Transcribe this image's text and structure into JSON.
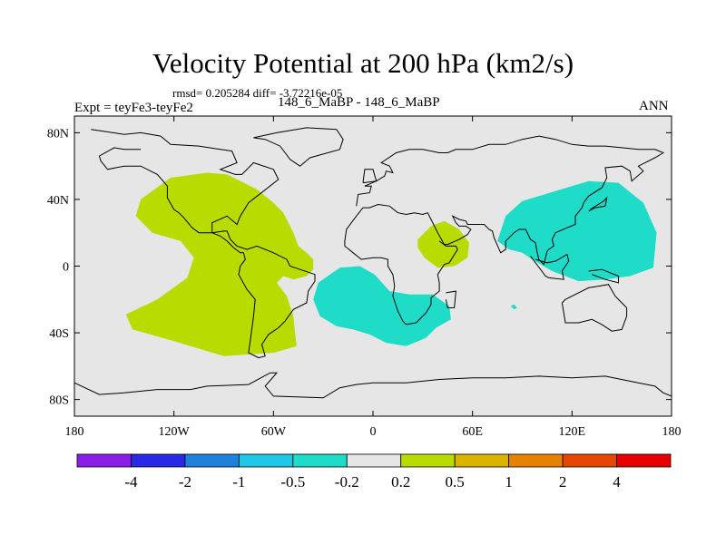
{
  "chart_data": {
    "type": "heatmap",
    "title": "Velocity Potential at 200 hPa (km2/s)",
    "stats": "rmsd= 0.205284 diff= -3.72216e-05",
    "experiment": "Expt = teyFe3-teyFe2",
    "subtitle": "148_6_MaBP - 148_6_MaBP",
    "season": "ANN",
    "x_range": [
      -180,
      180
    ],
    "y_range": [
      -90,
      90
    ],
    "x_ticks": [
      {
        "value": -180,
        "label": "180"
      },
      {
        "value": -120,
        "label": "120W"
      },
      {
        "value": -60,
        "label": "60W"
      },
      {
        "value": 0,
        "label": "0"
      },
      {
        "value": 60,
        "label": "60E"
      },
      {
        "value": 120,
        "label": "120E"
      },
      {
        "value": 180,
        "label": "180"
      }
    ],
    "y_ticks": [
      {
        "value": 80,
        "label": "80N"
      },
      {
        "value": 40,
        "label": "40N"
      },
      {
        "value": 0,
        "label": "0"
      },
      {
        "value": -40,
        "label": "40S"
      },
      {
        "value": -80,
        "label": "80S"
      }
    ],
    "colorbar": {
      "colors": [
        "#8a1ee6",
        "#2828e6",
        "#1e82dc",
        "#1ec8e6",
        "#1edcc8",
        "#e6e6e6",
        "#b8dc00",
        "#dcb400",
        "#e68200",
        "#e64600",
        "#e60000"
      ],
      "labels": [
        "-4",
        "-2",
        "-1",
        "-0.5",
        "-0.2",
        "0.2",
        "0.5",
        "1",
        "2",
        "4"
      ]
    },
    "regions": [
      {
        "name": "positive-anomaly-americas",
        "value_bin": "0.2 to 0.5",
        "color": "#b8dc00",
        "outline": [
          [
            -140,
            40
          ],
          [
            -122,
            53
          ],
          [
            -100,
            56
          ],
          [
            -88,
            55
          ],
          [
            -70,
            46
          ],
          [
            -60,
            38
          ],
          [
            -54,
            32
          ],
          [
            -48,
            20
          ],
          [
            -45,
            12
          ],
          [
            -40,
            8
          ],
          [
            -36,
            4
          ],
          [
            -36,
            -2
          ],
          [
            -40,
            -6
          ],
          [
            -48,
            -8
          ],
          [
            -54,
            -6
          ],
          [
            -58,
            -10
          ],
          [
            -52,
            -18
          ],
          [
            -48,
            -30
          ],
          [
            -47,
            -40
          ],
          [
            -46,
            -48
          ],
          [
            -60,
            -52
          ],
          [
            -90,
            -54
          ],
          [
            -120,
            -45
          ],
          [
            -145,
            -38
          ],
          [
            -149,
            -29
          ],
          [
            -130,
            -20
          ],
          [
            -112,
            -7
          ],
          [
            -108,
            5
          ],
          [
            -116,
            15
          ],
          [
            -133,
            20
          ],
          [
            -143,
            30
          ]
        ]
      },
      {
        "name": "positive-anomaly-arabia",
        "value_bin": "0.2 to 0.5",
        "color": "#b8dc00",
        "outline": [
          [
            27,
            16
          ],
          [
            35,
            24
          ],
          [
            43,
            27
          ],
          [
            52,
            22
          ],
          [
            58,
            14
          ],
          [
            57,
            5
          ],
          [
            49,
            0
          ],
          [
            39,
            -1
          ],
          [
            31,
            5
          ],
          [
            27,
            11
          ]
        ]
      },
      {
        "name": "negative-anomaly-atlantic-africa",
        "value_bin": "-0.2 to -0.5",
        "color": "#1edcc8",
        "outline": [
          [
            -33,
            -10
          ],
          [
            -20,
            -1
          ],
          [
            -8,
            0
          ],
          [
            1,
            -5
          ],
          [
            10,
            -15
          ],
          [
            22,
            -17
          ],
          [
            36,
            -17
          ],
          [
            46,
            -24
          ],
          [
            47,
            -32
          ],
          [
            38,
            -37
          ],
          [
            32,
            -43
          ],
          [
            20,
            -48
          ],
          [
            8,
            -46
          ],
          [
            -2,
            -41
          ],
          [
            -12,
            -38
          ],
          [
            -22,
            -36
          ],
          [
            -32,
            -30
          ],
          [
            -36,
            -20
          ]
        ]
      },
      {
        "name": "negative-anomaly-asia-pacific",
        "value_bin": "-0.2 to -0.5",
        "color": "#1edcc8",
        "outline": [
          [
            75,
            15
          ],
          [
            80,
            30
          ],
          [
            90,
            39
          ],
          [
            110,
            45
          ],
          [
            130,
            51
          ],
          [
            148,
            50
          ],
          [
            163,
            38
          ],
          [
            171,
            20
          ],
          [
            169,
            -1
          ],
          [
            155,
            -6
          ],
          [
            140,
            -8
          ],
          [
            124,
            -9
          ],
          [
            108,
            -3
          ],
          [
            96,
            4
          ],
          [
            90,
            8
          ],
          [
            82,
            10
          ]
        ]
      },
      {
        "name": "negative-anomaly-islet",
        "value_bin": "-0.2 to -0.5",
        "color": "#1edcc8",
        "outline": [
          [
            83,
            -24
          ],
          [
            85,
            -23
          ],
          [
            87,
            -25
          ],
          [
            85,
            -26
          ]
        ]
      }
    ]
  },
  "coast": [
    [
      [
        -170,
        82
      ],
      [
        -150,
        79
      ],
      [
        -140,
        80
      ],
      [
        -128,
        78
      ],
      [
        -122,
        73
      ],
      [
        -105,
        72
      ],
      [
        -92,
        70
      ],
      [
        -85,
        69
      ],
      [
        -82,
        62
      ],
      [
        -92,
        58
      ],
      [
        -83,
        55
      ],
      [
        -79,
        55
      ],
      [
        -72,
        62
      ],
      [
        -60,
        58
      ],
      [
        -57,
        52
      ],
      [
        -66,
        45
      ],
      [
        -75,
        38
      ],
      [
        -80,
        30
      ],
      [
        -82,
        25
      ],
      [
        -88,
        30
      ],
      [
        -97,
        26
      ],
      [
        -97,
        20
      ],
      [
        -92,
        18
      ],
      [
        -88,
        15
      ],
      [
        -84,
        11
      ],
      [
        -80,
        8
      ],
      [
        -78,
        8
      ],
      [
        -77,
        4
      ],
      [
        -80,
        0
      ],
      [
        -81,
        -5
      ],
      [
        -76,
        -14
      ],
      [
        -71,
        -20
      ],
      [
        -72,
        -30
      ],
      [
        -74,
        -45
      ],
      [
        -75,
        -52
      ],
      [
        -69,
        -55
      ],
      [
        -65,
        -54
      ],
      [
        -67,
        -47
      ],
      [
        -63,
        -41
      ],
      [
        -57,
        -37
      ],
      [
        -53,
        -33
      ],
      [
        -48,
        -26
      ],
      [
        -40,
        -22
      ],
      [
        -39,
        -15
      ],
      [
        -35,
        -9
      ],
      [
        -35,
        -5
      ],
      [
        -44,
        -2
      ],
      [
        -50,
        0
      ],
      [
        -52,
        4
      ],
      [
        -60,
        8
      ],
      [
        -70,
        12
      ],
      [
        -76,
        10
      ],
      [
        -82,
        12
      ],
      [
        -86,
        16
      ],
      [
        -88,
        21
      ],
      [
        -90,
        21
      ],
      [
        -97,
        20
      ],
      [
        -105,
        20
      ],
      [
        -109,
        23
      ],
      [
        -114,
        29
      ],
      [
        -117,
        32
      ],
      [
        -120,
        34
      ],
      [
        -124,
        41
      ],
      [
        -124,
        48
      ],
      [
        -130,
        55
      ],
      [
        -140,
        60
      ],
      [
        -150,
        60
      ],
      [
        -160,
        58
      ],
      [
        -164,
        63
      ],
      [
        -165,
        66
      ],
      [
        -156,
        71
      ],
      [
        -150,
        70
      ],
      [
        -140,
        70
      ]
    ],
    [
      [
        -72,
        77
      ],
      [
        -58,
        80
      ],
      [
        -40,
        83
      ],
      [
        -22,
        82
      ],
      [
        -18,
        76
      ],
      [
        -20,
        70
      ],
      [
        -38,
        65
      ],
      [
        -44,
        60
      ],
      [
        -50,
        64
      ],
      [
        -56,
        72
      ],
      [
        -65,
        76
      ],
      [
        -72,
        77
      ]
    ],
    [
      [
        -10,
        36
      ],
      [
        -9,
        43
      ],
      [
        -2,
        44
      ],
      [
        -1,
        48
      ],
      [
        -5,
        48
      ],
      [
        2,
        51
      ],
      [
        7,
        54
      ],
      [
        8,
        57
      ],
      [
        12,
        56
      ],
      [
        10,
        60
      ],
      [
        5,
        62
      ],
      [
        14,
        68
      ],
      [
        22,
        70
      ],
      [
        30,
        70
      ],
      [
        40,
        68
      ],
      [
        45,
        68
      ],
      [
        50,
        70
      ],
      [
        60,
        70
      ],
      [
        70,
        73
      ],
      [
        80,
        73
      ],
      [
        90,
        76
      ],
      [
        100,
        78
      ],
      [
        110,
        76
      ],
      [
        120,
        73
      ],
      [
        130,
        72
      ],
      [
        140,
        72
      ],
      [
        150,
        71
      ],
      [
        160,
        70
      ],
      [
        170,
        70
      ],
      [
        175,
        68
      ],
      [
        170,
        65
      ],
      [
        160,
        60
      ],
      [
        163,
        57
      ],
      [
        156,
        51
      ],
      [
        155,
        57
      ],
      [
        150,
        60
      ],
      [
        140,
        59
      ],
      [
        141,
        53
      ],
      [
        138,
        47
      ],
      [
        130,
        42
      ],
      [
        127,
        38
      ],
      [
        126,
        35
      ],
      [
        122,
        30
      ],
      [
        122,
        25
      ],
      [
        117,
        23
      ],
      [
        110,
        20
      ],
      [
        108,
        16
      ],
      [
        109,
        12
      ],
      [
        106,
        10
      ],
      [
        105,
        9
      ],
      [
        103,
        1
      ],
      [
        100,
        4
      ],
      [
        99,
        8
      ],
      [
        98,
        14
      ],
      [
        95,
        16
      ],
      [
        92,
        22
      ],
      [
        88,
        22
      ],
      [
        85,
        20
      ],
      [
        80,
        15
      ],
      [
        80,
        10
      ],
      [
        77,
        8
      ],
      [
        73,
        17
      ],
      [
        72,
        21
      ],
      [
        70,
        22
      ],
      [
        67,
        25
      ],
      [
        61,
        25
      ],
      [
        57,
        25
      ],
      [
        56,
        27
      ],
      [
        52,
        28
      ],
      [
        48,
        30
      ],
      [
        50,
        26
      ],
      [
        52,
        24
      ],
      [
        56,
        24
      ],
      [
        59,
        22
      ],
      [
        57,
        19
      ],
      [
        52,
        16
      ],
      [
        45,
        13
      ],
      [
        43,
        13
      ],
      [
        39,
        20
      ],
      [
        35,
        28
      ],
      [
        33,
        32
      ],
      [
        30,
        31
      ],
      [
        25,
        32
      ],
      [
        20,
        31
      ],
      [
        15,
        32
      ],
      [
        10,
        36
      ],
      [
        3,
        37
      ],
      [
        -2,
        35
      ],
      [
        -6,
        35
      ],
      [
        -10,
        30
      ],
      [
        -16,
        22
      ],
      [
        -17,
        15
      ],
      [
        -17,
        12
      ],
      [
        -12,
        8
      ],
      [
        -7,
        4
      ],
      [
        0,
        5
      ],
      [
        5,
        5
      ],
      [
        9,
        4
      ],
      [
        9,
        0
      ],
      [
        12,
        -5
      ],
      [
        13,
        -12
      ],
      [
        12,
        -18
      ],
      [
        15,
        -27
      ],
      [
        18,
        -33
      ],
      [
        20,
        -35
      ],
      [
        26,
        -34
      ],
      [
        32,
        -28
      ],
      [
        35,
        -23
      ],
      [
        35,
        -19
      ],
      [
        40,
        -15
      ],
      [
        40,
        -10
      ],
      [
        39,
        -5
      ],
      [
        41,
        -2
      ],
      [
        43,
        1
      ],
      [
        46,
        2
      ],
      [
        51,
        10
      ],
      [
        50,
        12
      ],
      [
        44,
        12
      ],
      [
        40,
        15
      ]
    ],
    [
      [
        44,
        -16
      ],
      [
        50,
        -15
      ],
      [
        49,
        -25
      ],
      [
        45,
        -25
      ],
      [
        44,
        -20
      ]
    ],
    [
      [
        -6,
        50
      ],
      [
        2,
        51
      ],
      [
        0,
        58
      ],
      [
        -5,
        58
      ],
      [
        -6,
        50
      ]
    ],
    [
      [
        95,
        6
      ],
      [
        104,
        -6
      ],
      [
        106,
        -7
      ],
      [
        115,
        -8
      ],
      [
        114,
        -3
      ],
      [
        118,
        3
      ],
      [
        117,
        7
      ],
      [
        110,
        3
      ],
      [
        105,
        2
      ],
      [
        98,
        4
      ]
    ],
    [
      [
        114,
        -22
      ],
      [
        116,
        -34
      ],
      [
        124,
        -34
      ],
      [
        132,
        -32
      ],
      [
        138,
        -35
      ],
      [
        144,
        -39
      ],
      [
        150,
        -38
      ],
      [
        153,
        -30
      ],
      [
        153,
        -25
      ],
      [
        146,
        -18
      ],
      [
        142,
        -11
      ],
      [
        136,
        -12
      ],
      [
        130,
        -13
      ],
      [
        124,
        -16
      ],
      [
        116,
        -20
      ],
      [
        114,
        -22
      ]
    ],
    [
      [
        130,
        -3
      ],
      [
        138,
        -2
      ],
      [
        148,
        -6
      ],
      [
        148,
        -10
      ],
      [
        140,
        -8
      ],
      [
        132,
        -5
      ]
    ],
    [
      [
        130,
        33
      ],
      [
        134,
        35
      ],
      [
        140,
        36
      ],
      [
        141,
        41
      ],
      [
        139,
        39
      ],
      [
        131,
        34
      ]
    ],
    [
      [
        -180,
        -70
      ],
      [
        -165,
        -77
      ],
      [
        -150,
        -76
      ],
      [
        -130,
        -74
      ],
      [
        -110,
        -74
      ],
      [
        -100,
        -72
      ],
      [
        -75,
        -71
      ],
      [
        -62,
        -64
      ],
      [
        -58,
        -64
      ],
      [
        -65,
        -72
      ],
      [
        -60,
        -78
      ],
      [
        -30,
        -79
      ],
      [
        -20,
        -73
      ],
      [
        -10,
        -71
      ],
      [
        0,
        -70
      ],
      [
        20,
        -70
      ],
      [
        40,
        -68
      ],
      [
        60,
        -67
      ],
      [
        80,
        -67
      ],
      [
        100,
        -66
      ],
      [
        120,
        -67
      ],
      [
        140,
        -66
      ],
      [
        160,
        -70
      ],
      [
        170,
        -72
      ],
      [
        175,
        -76
      ],
      [
        180,
        -78
      ]
    ]
  ]
}
